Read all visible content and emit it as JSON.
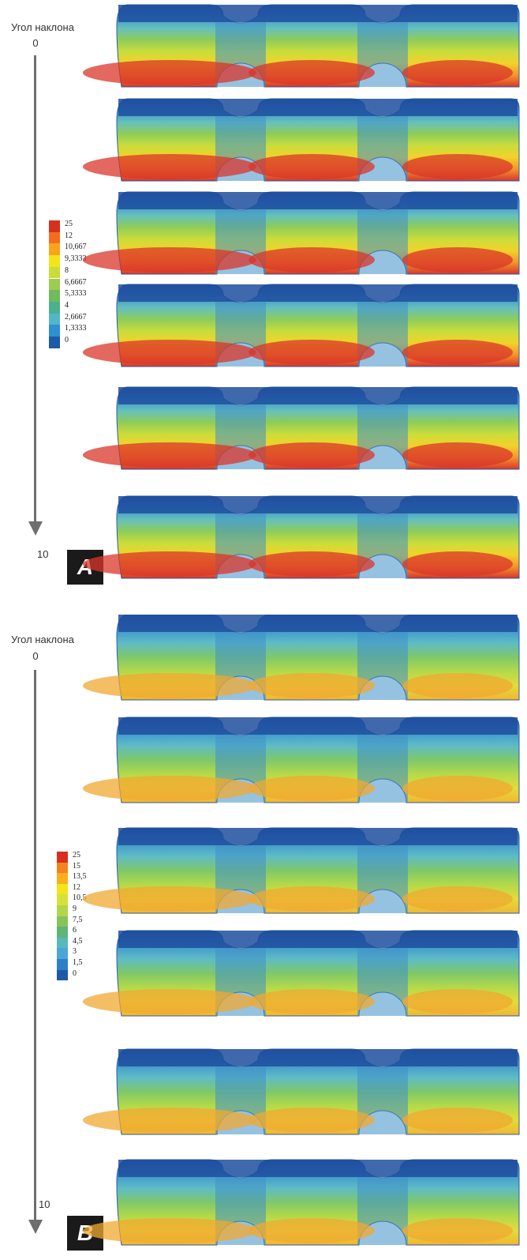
{
  "panel_a": {
    "axis_title": "Угол наклона",
    "axis_start": "0",
    "axis_end": "10",
    "label": "A",
    "legend": [
      {
        "label": "25",
        "color": "#d7301f"
      },
      {
        "label": "12",
        "color": "#f46d1e"
      },
      {
        "label": "10,667",
        "color": "#f9a51b"
      },
      {
        "label": "9,3333",
        "color": "#f2e51a"
      },
      {
        "label": "8",
        "color": "#c9dc3a"
      },
      {
        "label": "6,6667",
        "color": "#9ccc50"
      },
      {
        "label": "5,3333",
        "color": "#6fba5c"
      },
      {
        "label": "4",
        "color": "#4caf8f"
      },
      {
        "label": "2,6667",
        "color": "#53b6c8"
      },
      {
        "label": "1,3333",
        "color": "#2f8fcf"
      },
      {
        "label": "0",
        "color": "#1c5aa8"
      }
    ],
    "gradient": [
      "#2a5db0",
      "#3e94cf",
      "#66c0bd",
      "#8fcc5a",
      "#cadd3c",
      "#f2d22a",
      "#f2962a",
      "#d9362a"
    ],
    "slice_count": 6
  },
  "panel_b": {
    "axis_title": "Угол наклона",
    "axis_start": "0",
    "axis_end": "10",
    "label": "B",
    "legend": [
      {
        "label": "25",
        "color": "#d7301f"
      },
      {
        "label": "15",
        "color": "#f4821e"
      },
      {
        "label": "13,5",
        "color": "#f9b01b"
      },
      {
        "label": "12",
        "color": "#f2e51a"
      },
      {
        "label": "10,5",
        "color": "#d6e23a"
      },
      {
        "label": "9",
        "color": "#b3d54a"
      },
      {
        "label": "7,5",
        "color": "#86c45a"
      },
      {
        "label": "6",
        "color": "#5fb47a"
      },
      {
        "label": "4,5",
        "color": "#58b9b8"
      },
      {
        "label": "3",
        "color": "#4aa6d8"
      },
      {
        "label": "1,5",
        "color": "#2f7fc8"
      },
      {
        "label": "0",
        "color": "#1c5aa8"
      }
    ],
    "gradient": [
      "#2a5db0",
      "#3e94cf",
      "#5fbcc6",
      "#7fc86a",
      "#b4d94a",
      "#e2dc3a",
      "#f0b632"
    ],
    "slice_count": 6
  }
}
